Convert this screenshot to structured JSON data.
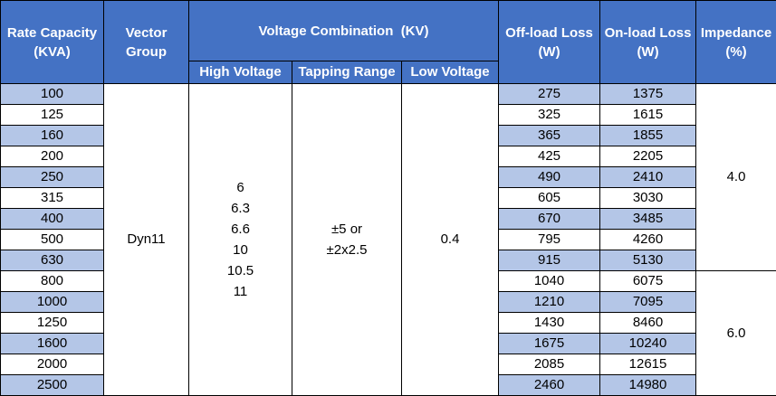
{
  "headers": {
    "capacity": [
      "Rate Capacity",
      "(KVA)"
    ],
    "vector_group": [
      "Vector",
      "Group"
    ],
    "voltage_combination": "Voltage Combination  (KV)",
    "high_voltage": "High Voltage",
    "tapping_range": "Tapping Range",
    "low_voltage": "Low Voltage",
    "offload_loss": [
      "Off-load Loss",
      "(W)"
    ],
    "onload_loss": [
      "On-load Loss",
      "(W)"
    ],
    "impedance": [
      "Impedance",
      "(%)"
    ]
  },
  "merged": {
    "vector_group": "Dyn11",
    "high_voltage": [
      "6",
      "6.3",
      "6.6",
      "10",
      "10.5",
      "11"
    ],
    "tapping_range": [
      "±5 or",
      "±2x2.5"
    ],
    "low_voltage": "0.4",
    "impedance_group1": "4.0",
    "impedance_group2": "6.0"
  },
  "rows": [
    {
      "capacity": "100",
      "offload": "275",
      "onload": "1375"
    },
    {
      "capacity": "125",
      "offload": "325",
      "onload": "1615"
    },
    {
      "capacity": "160",
      "offload": "365",
      "onload": "1855"
    },
    {
      "capacity": "200",
      "offload": "425",
      "onload": "2205"
    },
    {
      "capacity": "250",
      "offload": "490",
      "onload": "2410"
    },
    {
      "capacity": "315",
      "offload": "605",
      "onload": "3030"
    },
    {
      "capacity": "400",
      "offload": "670",
      "onload": "3485"
    },
    {
      "capacity": "500",
      "offload": "795",
      "onload": "4260"
    },
    {
      "capacity": "630",
      "offload": "915",
      "onload": "5130"
    },
    {
      "capacity": "800",
      "offload": "1040",
      "onload": "6075"
    },
    {
      "capacity": "1000",
      "offload": "1210",
      "onload": "7095"
    },
    {
      "capacity": "1250",
      "offload": "1430",
      "onload": "8460"
    },
    {
      "capacity": "1600",
      "offload": "1675",
      "onload": "10240"
    },
    {
      "capacity": "2000",
      "offload": "2085",
      "onload": "12615"
    },
    {
      "capacity": "2500",
      "offload": "2460",
      "onload": "14980"
    }
  ],
  "colors": {
    "header_bg": "#4472c4",
    "header_text": "#ffffff",
    "band_bg": "#b4c6e7",
    "plain_bg": "#ffffff"
  }
}
